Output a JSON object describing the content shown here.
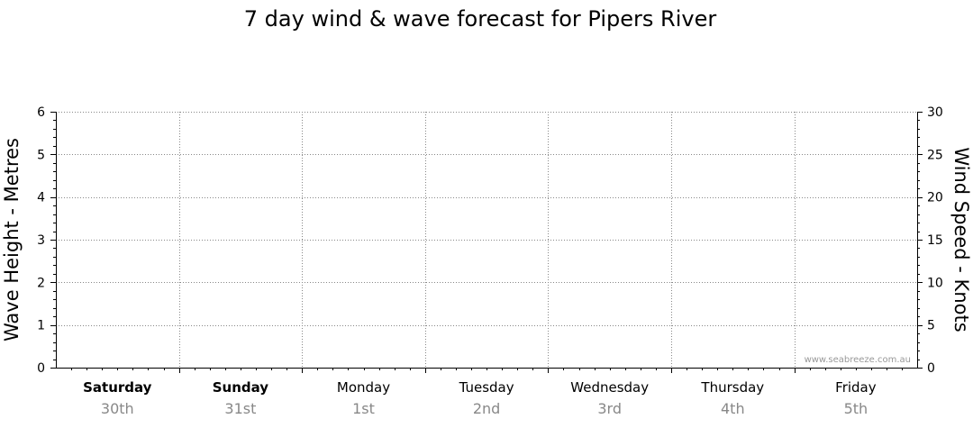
{
  "chart_data": {
    "type": "line",
    "title": "7 day wind & wave forecast for Pipers River",
    "ylabel_left": "Wave Height - Metres",
    "ylabel_right": "Wind Speed - Knots",
    "ylim_left": [
      0,
      6
    ],
    "ylim_right": [
      0,
      30
    ],
    "yticks_left": [
      "0",
      "1",
      "2",
      "3",
      "4",
      "5",
      "6"
    ],
    "yticks_right": [
      "0",
      "5",
      "10",
      "15",
      "20",
      "25",
      "30"
    ],
    "grid": true,
    "days": [
      {
        "name": "Saturday",
        "date": "30th",
        "bold": true
      },
      {
        "name": "Sunday",
        "date": "31st",
        "bold": true
      },
      {
        "name": "Monday",
        "date": "1st",
        "bold": false
      },
      {
        "name": "Tuesday",
        "date": "2nd",
        "bold": false
      },
      {
        "name": "Wednesday",
        "date": "3rd",
        "bold": false
      },
      {
        "name": "Thursday",
        "date": "4th",
        "bold": false
      },
      {
        "name": "Friday",
        "date": "5th",
        "bold": false
      }
    ],
    "series": [],
    "watermark": "www.seabreeze.com.au"
  }
}
